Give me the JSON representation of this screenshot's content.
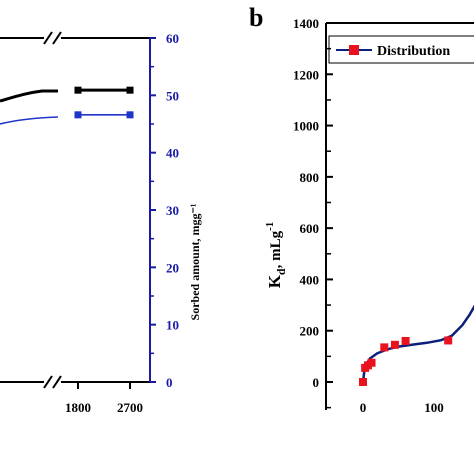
{
  "colors": {
    "black": "#000000",
    "blue": "#1f35c9",
    "right_axis_blue": "#1a1aa6",
    "red_marker": "#e8131f",
    "navy_curve": "#0d1f7a"
  },
  "chart_data": [
    {
      "type": "line",
      "panel": "left (cropped)",
      "right_ylabel": "Sorbed amount, mgg⁻¹",
      "right_ylim": [
        0,
        60
      ],
      "right_yticks": [
        "0",
        "10",
        "20",
        "30",
        "40",
        "50",
        "60"
      ],
      "x_tick_labels": [
        "1800",
        "2700"
      ],
      "axis_break": true,
      "grid": false,
      "series": [
        {
          "name": "",
          "color": "black",
          "axis": "right",
          "x": [
            1800,
            2700
          ],
          "values": [
            50.9,
            50.9
          ]
        },
        {
          "name": "",
          "color": "blue",
          "axis": "right",
          "x": [
            1800,
            2700
          ],
          "values": [
            46.6,
            46.6
          ]
        }
      ]
    },
    {
      "type": "line",
      "panel": "b",
      "panel_label": "b",
      "ylabel_main": "K",
      "ylabel_sub": "d",
      "ylabel_unit": ", mLg",
      "ylabel_sup": "-1",
      "ylim": [
        -100,
        1400
      ],
      "yticks": [
        "0",
        "200",
        "400",
        "600",
        "800",
        "1000",
        "1200",
        "1400"
      ],
      "x_tick_labels": [
        "0",
        "100"
      ],
      "legend": "Distribution",
      "legend_position": "top",
      "grid": false,
      "series": [
        {
          "name": "Distribution",
          "points": [
            [
              0,
              0
            ],
            [
              3,
              55
            ],
            [
              7,
              65
            ],
            [
              12,
              75
            ],
            [
              30,
              135
            ],
            [
              45,
              145
            ],
            [
              60,
              160
            ],
            [
              120,
              162
            ]
          ]
        }
      ],
      "fit_curve": [
        [
          0,
          0
        ],
        [
          2,
          45
        ],
        [
          5,
          72
        ],
        [
          10,
          92
        ],
        [
          20,
          112
        ],
        [
          35,
          128
        ],
        [
          50,
          138
        ],
        [
          70,
          146
        ],
        [
          90,
          153
        ],
        [
          110,
          163
        ],
        [
          125,
          180
        ],
        [
          140,
          222
        ],
        [
          150,
          262
        ],
        [
          158,
          300
        ]
      ]
    }
  ]
}
